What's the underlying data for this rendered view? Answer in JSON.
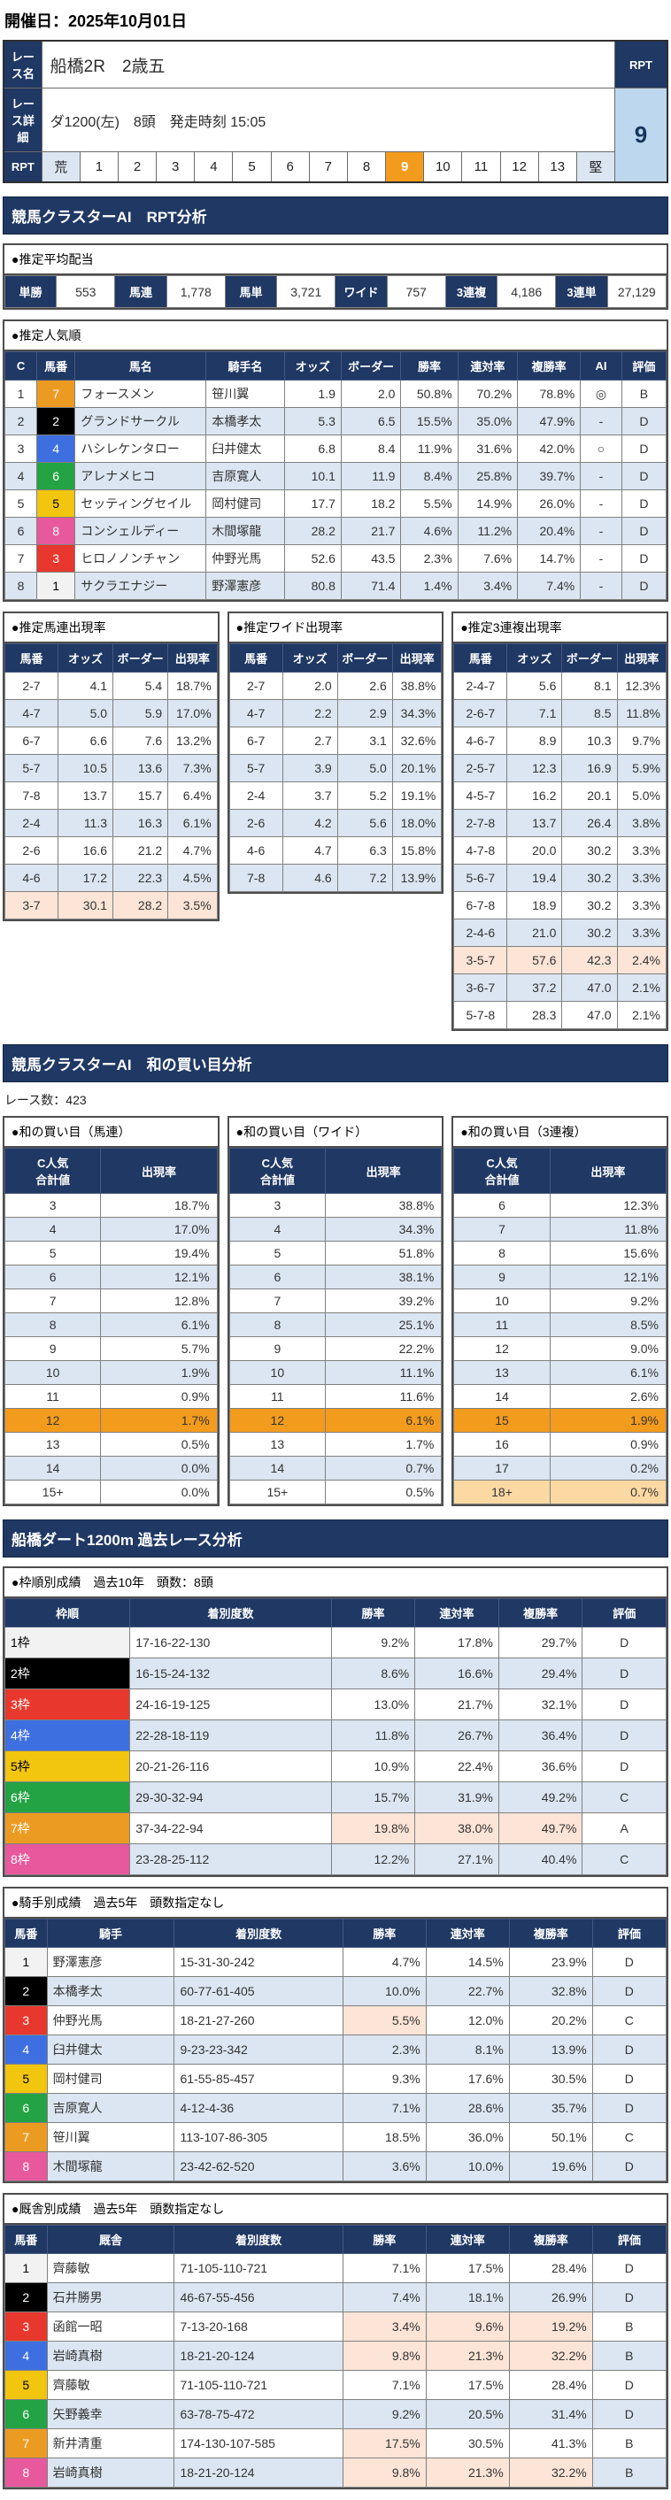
{
  "page": {
    "date_label": "開催日：2025年10月01日"
  },
  "colors": {
    "navy_header": "#1f3864",
    "alt_row_blue": "#dce6f2",
    "rpt_badge_bg": "#bdd7ee",
    "orange_highlight": "#f39b1d",
    "salmon_highlight": "#fce4d6",
    "tan_highlight": "#fcd9a3",
    "waku": {
      "1": "#f2f2f2",
      "2": "#000000",
      "3": "#e8382d",
      "4": "#3e6fe0",
      "5": "#f2c50f",
      "6": "#23a344",
      "7": "#ec9b22",
      "8": "#e7599c"
    }
  },
  "race_info": {
    "name_label": "レース名",
    "name": "船橋2R　2歳五",
    "detail_label": "レース詳細",
    "detail": "ダ1200(左)　8頭　発走時刻 15:05",
    "rpt_label": "RPT",
    "rpt_value": "9",
    "rpt_scale": [
      {
        "t": "荒",
        "c": "edge"
      },
      {
        "t": "1"
      },
      {
        "t": "2"
      },
      {
        "t": "3"
      },
      {
        "t": "4"
      },
      {
        "t": "5"
      },
      {
        "t": "6"
      },
      {
        "t": "7"
      },
      {
        "t": "8"
      },
      {
        "t": "9",
        "c": "sel"
      },
      {
        "t": "10"
      },
      {
        "t": "11"
      },
      {
        "t": "12"
      },
      {
        "t": "13"
      },
      {
        "t": "堅",
        "c": "edge"
      }
    ]
  },
  "sections": {
    "rpt_title": "競馬クラスターAI　RPT分析",
    "wa_title": "競馬クラスターAI　和の買い目分析",
    "past_title": "船橋ダート1200m 過去レース分析"
  },
  "payouts": {
    "title": "●推定平均配当",
    "rows": [
      [
        {
          "t": "単勝",
          "c": "plab"
        },
        {
          "t": "553",
          "c": "pval"
        },
        {
          "t": "馬連",
          "c": "plab"
        },
        {
          "t": "1,778",
          "c": "pval"
        },
        {
          "t": "馬単",
          "c": "plab"
        },
        {
          "t": "3,721",
          "c": "pval"
        },
        {
          "t": "ワイド",
          "c": "plab"
        },
        {
          "t": "757",
          "c": "pval"
        },
        {
          "t": "3連複",
          "c": "plab"
        },
        {
          "t": "4,186",
          "c": "pval"
        },
        {
          "t": "3連単",
          "c": "plab"
        },
        {
          "t": "27,129",
          "c": "pval"
        }
      ]
    ]
  },
  "popularity": {
    "title": "●推定人気順",
    "headers": [
      "C",
      "馬番",
      "馬名",
      "騎手名",
      "オッズ",
      "ボーダー",
      "勝率",
      "連対率",
      "複勝率",
      "AI",
      "評価"
    ],
    "rows": [
      [
        "1",
        {
          "t": "7",
          "c": "wk waku7"
        },
        "フォースメン",
        "笹川翼",
        "1.9",
        "2.0",
        "50.8%",
        "70.2%",
        "78.8%",
        "◎",
        "B"
      ],
      [
        "2",
        {
          "t": "2",
          "c": "wk waku2"
        },
        "グランドサークル",
        "本橋孝太",
        "5.3",
        "6.5",
        "15.5%",
        "35.0%",
        "47.9%",
        "-",
        "D"
      ],
      [
        "3",
        {
          "t": "4",
          "c": "wk waku4"
        },
        "ハシレケンタロー",
        "臼井健太",
        "6.8",
        "8.4",
        "11.9%",
        "31.6%",
        "42.0%",
        "○",
        "D"
      ],
      [
        "4",
        {
          "t": "6",
          "c": "wk waku6"
        },
        "アレナメヒコ",
        "吉原寛人",
        "10.1",
        "11.9",
        "8.4%",
        "25.8%",
        "39.7%",
        "-",
        "D"
      ],
      [
        "5",
        {
          "t": "5",
          "c": "wk waku5"
        },
        "セッティングセイル",
        "岡村健司",
        "17.7",
        "18.2",
        "5.5%",
        "14.9%",
        "26.0%",
        "-",
        "D"
      ],
      [
        "6",
        {
          "t": "8",
          "c": "wk waku8"
        },
        "コンシェルディー",
        "木間塚龍",
        "28.2",
        "21.7",
        "4.6%",
        "11.2%",
        "20.4%",
        "-",
        "D"
      ],
      [
        "7",
        {
          "t": "3",
          "c": "wk waku3"
        },
        "ヒロノノンチャン",
        "仲野光馬",
        "52.6",
        "43.5",
        "2.3%",
        "7.6%",
        "14.7%",
        "-",
        "D"
      ],
      [
        "8",
        {
          "t": "1",
          "c": "wk waku1"
        },
        "サクラエナジー",
        "野澤憲彦",
        "80.8",
        "71.4",
        "1.4%",
        "3.4%",
        "7.4%",
        "-",
        "D"
      ]
    ]
  },
  "umaren_rate": {
    "title": "●推定馬連出現率",
    "headers": [
      "馬番",
      "オッズ",
      "ボーダー",
      "出現率"
    ],
    "rows": [
      [
        "2-7",
        "4.1",
        "5.4",
        "18.7%"
      ],
      [
        "4-7",
        "5.0",
        "5.9",
        "17.0%"
      ],
      [
        "6-7",
        "6.6",
        "7.6",
        "13.2%"
      ],
      [
        "5-7",
        "10.5",
        "13.6",
        "7.3%"
      ],
      [
        "7-8",
        "13.7",
        "15.7",
        "6.4%"
      ],
      [
        "2-4",
        "11.3",
        "16.3",
        "6.1%"
      ],
      [
        "2-6",
        "16.6",
        "21.2",
        "4.7%"
      ],
      [
        "4-6",
        "17.2",
        "22.3",
        "4.5%"
      ],
      {
        "cells": [
          "3-7",
          "30.1",
          "28.2",
          "3.5%"
        ],
        "cls": "hl-row"
      }
    ]
  },
  "wide_rate": {
    "title": "●推定ワイド出現率",
    "headers": [
      "馬番",
      "オッズ",
      "ボーダー",
      "出現率"
    ],
    "rows": [
      [
        "2-7",
        "2.0",
        "2.6",
        "38.8%"
      ],
      [
        "4-7",
        "2.2",
        "2.9",
        "34.3%"
      ],
      [
        "6-7",
        "2.7",
        "3.1",
        "32.6%"
      ],
      [
        "5-7",
        "3.9",
        "5.0",
        "20.1%"
      ],
      [
        "2-4",
        "3.7",
        "5.2",
        "19.1%"
      ],
      [
        "2-6",
        "4.2",
        "5.6",
        "18.0%"
      ],
      [
        "4-6",
        "4.7",
        "6.3",
        "15.8%"
      ],
      [
        "7-8",
        "4.6",
        "7.2",
        "13.9%"
      ]
    ]
  },
  "sanrenpuku_rate": {
    "title": "●推定3連複出現率",
    "headers": [
      "馬番",
      "オッズ",
      "ボーダー",
      "出現率"
    ],
    "rows": [
      [
        "2-4-7",
        "5.6",
        "8.1",
        "12.3%"
      ],
      [
        "2-6-7",
        "7.1",
        "8.5",
        "11.8%"
      ],
      [
        "4-6-7",
        "8.9",
        "10.3",
        "9.7%"
      ],
      [
        "2-5-7",
        "12.3",
        "16.9",
        "5.9%"
      ],
      [
        "4-5-7",
        "16.2",
        "20.1",
        "5.0%"
      ],
      [
        "2-7-8",
        "13.7",
        "26.4",
        "3.8%"
      ],
      [
        "4-7-8",
        "20.0",
        "30.2",
        "3.3%"
      ],
      [
        "5-6-7",
        "19.4",
        "30.2",
        "3.3%"
      ],
      [
        "6-7-8",
        "18.9",
        "30.2",
        "3.3%"
      ],
      [
        "2-4-6",
        "21.0",
        "30.2",
        "3.3%"
      ],
      {
        "cells": [
          "3-5-7",
          "57.6",
          "42.3",
          "2.4%"
        ],
        "cls": "hl-row"
      },
      [
        "3-6-7",
        "37.2",
        "47.0",
        "2.1%"
      ],
      [
        "5-7-8",
        "28.3",
        "47.0",
        "2.1%"
      ]
    ]
  },
  "wa": {
    "race_count": "レース数：423",
    "tables": [
      {
        "title": "●和の買い目（馬連）",
        "headers": [
          "C人気\n合計値",
          "出現率"
        ],
        "rows": [
          [
            "3",
            "18.7%"
          ],
          [
            "4",
            "17.0%"
          ],
          [
            "5",
            "19.4%"
          ],
          [
            "6",
            "12.1%"
          ],
          [
            "7",
            "12.8%"
          ],
          [
            "8",
            "6.1%"
          ],
          [
            "9",
            "5.7%"
          ],
          [
            "10",
            "1.9%"
          ],
          [
            "11",
            "0.9%"
          ],
          {
            "cells": [
              "12",
              "1.7%"
            ],
            "cls": "orange-row"
          },
          [
            "13",
            "0.5%"
          ],
          [
            "14",
            "0.0%"
          ],
          [
            "15+",
            "0.0%"
          ]
        ]
      },
      {
        "title": "●和の買い目（ワイド）",
        "headers": [
          "C人気\n合計値",
          "出現率"
        ],
        "rows": [
          [
            "3",
            "38.8%"
          ],
          [
            "4",
            "34.3%"
          ],
          [
            "5",
            "51.8%"
          ],
          [
            "6",
            "38.1%"
          ],
          [
            "7",
            "39.2%"
          ],
          [
            "8",
            "25.1%"
          ],
          [
            "9",
            "22.2%"
          ],
          [
            "10",
            "11.1%"
          ],
          [
            "11",
            "11.6%"
          ],
          {
            "cells": [
              "12",
              "6.1%"
            ],
            "cls": "orange-row"
          },
          [
            "13",
            "1.7%"
          ],
          [
            "14",
            "0.7%"
          ],
          [
            "15+",
            "0.5%"
          ]
        ]
      },
      {
        "title": "●和の買い目（3連複）",
        "headers": [
          "C人気\n合計値",
          "出現率"
        ],
        "rows": [
          [
            "6",
            "12.3%"
          ],
          [
            "7",
            "11.8%"
          ],
          [
            "8",
            "15.6%"
          ],
          [
            "9",
            "12.1%"
          ],
          [
            "10",
            "9.2%"
          ],
          [
            "11",
            "8.5%"
          ],
          [
            "12",
            "9.0%"
          ],
          [
            "13",
            "6.1%"
          ],
          [
            "14",
            "2.6%"
          ],
          {
            "cells": [
              "15",
              "1.9%"
            ],
            "cls": "orange-row"
          },
          [
            "16",
            "0.9%"
          ],
          [
            "17",
            "0.2%"
          ],
          {
            "cells": [
              "18+",
              "0.7%"
            ],
            "cls": "tan-row"
          }
        ]
      }
    ]
  },
  "waku_table": {
    "title": "●枠順別成績　過去10年　頭数：8頭",
    "headers": [
      "枠順",
      "着別度数",
      "勝率",
      "連対率",
      "複勝率",
      "評価"
    ],
    "rows": [
      [
        {
          "t": "1枠",
          "c": "wklabel waku1"
        },
        "17-16-22-130",
        "9.2%",
        "17.8%",
        "29.7%",
        "D"
      ],
      [
        {
          "t": "2枠",
          "c": "wklabel waku2"
        },
        "16-15-24-132",
        "8.6%",
        "16.6%",
        "29.4%",
        "D"
      ],
      [
        {
          "t": "3枠",
          "c": "wklabel waku3"
        },
        "24-16-19-125",
        "13.0%",
        "21.7%",
        "32.1%",
        "D"
      ],
      [
        {
          "t": "4枠",
          "c": "wklabel waku4"
        },
        "22-28-18-119",
        "11.8%",
        "26.7%",
        "36.4%",
        "D"
      ],
      [
        {
          "t": "5枠",
          "c": "wklabel waku5"
        },
        "20-21-26-116",
        "10.9%",
        "22.4%",
        "36.6%",
        "D"
      ],
      [
        {
          "t": "6枠",
          "c": "wklabel waku6"
        },
        "29-30-32-94",
        "15.7%",
        "31.9%",
        "49.2%",
        "C"
      ],
      [
        {
          "t": "7枠",
          "c": "wklabel waku7"
        },
        "37-34-22-94",
        {
          "t": "19.8%",
          "c": "hl"
        },
        {
          "t": "38.0%",
          "c": "hl"
        },
        {
          "t": "49.7%",
          "c": "hl"
        },
        "A"
      ],
      [
        {
          "t": "8枠",
          "c": "wklabel waku8"
        },
        "23-28-25-112",
        "12.2%",
        "27.1%",
        "40.4%",
        "C"
      ]
    ]
  },
  "jockey_table": {
    "title": "●騎手別成績　過去5年　頭数指定なし",
    "headers": [
      "馬番",
      "騎手",
      "着別度数",
      "勝率",
      "連対率",
      "複勝率",
      "評価"
    ],
    "rows": [
      [
        {
          "t": "1",
          "c": "wk waku1"
        },
        "野澤憲彦",
        "15-31-30-242",
        "4.7%",
        "14.5%",
        "23.9%",
        "D"
      ],
      [
        {
          "t": "2",
          "c": "wk waku2"
        },
        "本橋孝太",
        "60-77-61-405",
        "10.0%",
        "22.7%",
        "32.8%",
        "D"
      ],
      [
        {
          "t": "3",
          "c": "wk waku3"
        },
        "仲野光馬",
        "18-21-27-260",
        {
          "t": "5.5%",
          "c": "hl"
        },
        "12.0%",
        "20.2%",
        "C"
      ],
      [
        {
          "t": "4",
          "c": "wk waku4"
        },
        "臼井健太",
        "9-23-23-342",
        "2.3%",
        "8.1%",
        "13.9%",
        "D"
      ],
      [
        {
          "t": "5",
          "c": "wk waku5"
        },
        "岡村健司",
        "61-55-85-457",
        "9.3%",
        "17.6%",
        "30.5%",
        "D"
      ],
      [
        {
          "t": "6",
          "c": "wk waku6"
        },
        "吉原寛人",
        "4-12-4-36",
        "7.1%",
        "28.6%",
        "35.7%",
        "D"
      ],
      [
        {
          "t": "7",
          "c": "wk waku7"
        },
        "笹川翼",
        "113-107-86-305",
        "18.5%",
        "36.0%",
        "50.1%",
        "C"
      ],
      [
        {
          "t": "8",
          "c": "wk waku8"
        },
        "木間塚龍",
        "23-42-62-520",
        "3.6%",
        "10.0%",
        "19.6%",
        "D"
      ]
    ]
  },
  "stable_table": {
    "title": "●厩舎別成績　過去5年　頭数指定なし",
    "headers": [
      "馬番",
      "厩舎",
      "着別度数",
      "勝率",
      "連対率",
      "複勝率",
      "評価"
    ],
    "rows": [
      [
        {
          "t": "1",
          "c": "wk waku1"
        },
        "齊藤敏",
        "71-105-110-721",
        "7.1%",
        "17.5%",
        "28.4%",
        "D"
      ],
      [
        {
          "t": "2",
          "c": "wk waku2"
        },
        "石井勝男",
        "46-67-55-456",
        "7.4%",
        "18.1%",
        "26.9%",
        "D"
      ],
      [
        {
          "t": "3",
          "c": "wk waku3"
        },
        "函館一昭",
        "7-13-20-168",
        {
          "t": "3.4%",
          "c": "hl"
        },
        {
          "t": "9.6%",
          "c": "hl"
        },
        {
          "t": "19.2%",
          "c": "hl"
        },
        "B"
      ],
      [
        {
          "t": "4",
          "c": "wk waku4"
        },
        "岩崎真樹",
        "18-21-20-124",
        {
          "t": "9.8%",
          "c": "hl"
        },
        {
          "t": "21.3%",
          "c": "hl"
        },
        {
          "t": "32.2%",
          "c": "hl"
        },
        "B"
      ],
      [
        {
          "t": "5",
          "c": "wk waku5"
        },
        "齊藤敏",
        "71-105-110-721",
        "7.1%",
        "17.5%",
        "28.4%",
        "D"
      ],
      [
        {
          "t": "6",
          "c": "wk waku6"
        },
        "矢野義幸",
        "63-78-75-472",
        "9.2%",
        "20.5%",
        "31.4%",
        "D"
      ],
      [
        {
          "t": "7",
          "c": "wk waku7"
        },
        "新井清重",
        "174-130-107-585",
        {
          "t": "17.5%",
          "c": "hl"
        },
        "30.5%",
        "41.3%",
        "B"
      ],
      [
        {
          "t": "8",
          "c": "wk waku8"
        },
        "岩崎真樹",
        "18-21-20-124",
        {
          "t": "9.8%",
          "c": "hl"
        },
        {
          "t": "21.3%",
          "c": "hl"
        },
        {
          "t": "32.2%",
          "c": "hl"
        },
        "B"
      ]
    ]
  }
}
